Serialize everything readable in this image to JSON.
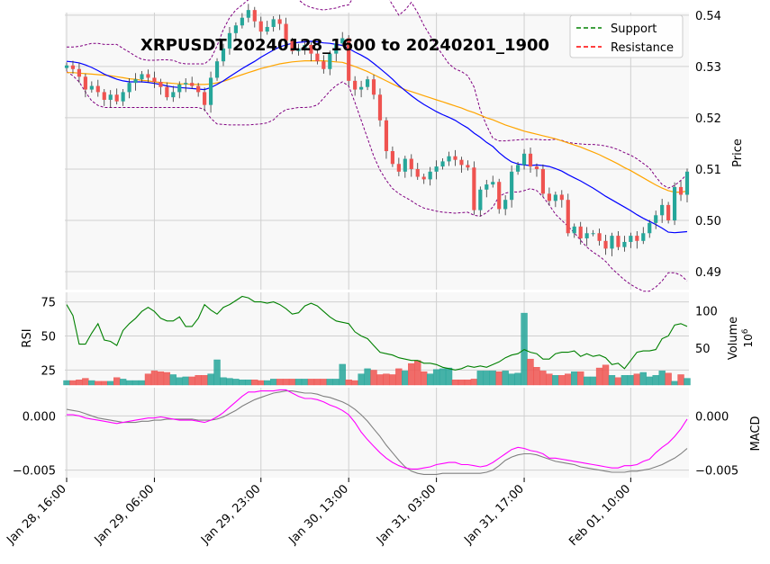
{
  "chart_data": {
    "type": "candlestick",
    "title": "XRPUSDT 20240128_1600 to 20240201_1900",
    "x_tick_labels": [
      "Jan 28, 16:00",
      "Jan 29, 06:00",
      "Jan 29, 23:00",
      "Jan 30, 13:00",
      "Jan 31, 03:00",
      "Jan 31, 17:00",
      "Feb 01, 10:00"
    ],
    "x_tick_index": [
      0,
      14,
      31,
      45,
      59,
      73,
      90
    ],
    "legend": [
      {
        "label": "Support",
        "color": "#008000",
        "style": "dashed"
      },
      {
        "label": "Resistance",
        "color": "#ff0000",
        "style": "dashed"
      }
    ],
    "legend_position": "top-right",
    "colors": {
      "up": "#26a69a",
      "down": "#ef5350",
      "sma_fast": "#0000ff",
      "sma_slow": "#ffa500",
      "bollinger": "#800080",
      "rsi": "#008000",
      "macd": "#ff00ff",
      "signal": "#808080",
      "panel_bg": "#f8f8f8",
      "grid": "#d0d0d0"
    },
    "price_panel": {
      "ylabel": "Price",
      "ylim": [
        0.4865,
        0.5405
      ],
      "yticks": [
        0.49,
        0.5,
        0.51,
        0.52,
        0.53,
        0.54
      ],
      "ytick_labels": [
        "0.49",
        "0.50",
        "0.51",
        "0.52",
        "0.53",
        "0.54"
      ],
      "close": [
        0.5302,
        0.5295,
        0.528,
        0.5255,
        0.5262,
        0.525,
        0.5235,
        0.5245,
        0.5232,
        0.525,
        0.5268,
        0.5275,
        0.5285,
        0.5278,
        0.527,
        0.526,
        0.524,
        0.525,
        0.5265,
        0.5268,
        0.5262,
        0.525,
        0.5225,
        0.5278,
        0.531,
        0.5335,
        0.5365,
        0.538,
        0.5395,
        0.541,
        0.5388,
        0.5368,
        0.5377,
        0.5392,
        0.5383,
        0.535,
        0.533,
        0.5335,
        0.5342,
        0.5325,
        0.531,
        0.5295,
        0.5325,
        0.5345,
        0.5355,
        0.5272,
        0.5255,
        0.526,
        0.5275,
        0.5245,
        0.5195,
        0.5135,
        0.511,
        0.5095,
        0.512,
        0.51,
        0.5085,
        0.508,
        0.5095,
        0.5105,
        0.5115,
        0.5125,
        0.5118,
        0.5108,
        0.5103,
        0.502,
        0.506,
        0.507,
        0.5075,
        0.5022,
        0.504,
        0.5095,
        0.5108,
        0.513,
        0.5105,
        0.51,
        0.5052,
        0.5038,
        0.505,
        0.504,
        0.4975,
        0.4988,
        0.4965,
        0.4975,
        0.4975,
        0.496,
        0.4945,
        0.497,
        0.4948,
        0.4958,
        0.497,
        0.496,
        0.4975,
        0.4995,
        0.501,
        0.503,
        0.5,
        0.5065,
        0.505,
        0.5095
      ],
      "sma_fast": [
        0.531,
        0.5309,
        0.5307,
        0.5303,
        0.5298,
        0.5292,
        0.5285,
        0.528,
        0.5275,
        0.5272,
        0.527,
        0.527,
        0.527,
        0.5269,
        0.5267,
        0.5265,
        0.5262,
        0.526,
        0.5259,
        0.5258,
        0.5257,
        0.5256,
        0.5255,
        0.5259,
        0.5265,
        0.5272,
        0.528,
        0.5288,
        0.5296,
        0.5303,
        0.531,
        0.5318,
        0.5325,
        0.5332,
        0.5338,
        0.5342,
        0.5345,
        0.5347,
        0.5348,
        0.5349,
        0.5348,
        0.5346,
        0.5345,
        0.5343,
        0.5341,
        0.5335,
        0.5328,
        0.5322,
        0.5315,
        0.5306,
        0.5296,
        0.5286,
        0.5275,
        0.5263,
        0.5253,
        0.5243,
        0.5234,
        0.5226,
        0.5219,
        0.5212,
        0.5206,
        0.5201,
        0.5195,
        0.5187,
        0.518,
        0.517,
        0.5162,
        0.5152,
        0.5144,
        0.5132,
        0.5122,
        0.5114,
        0.511,
        0.5108,
        0.5107,
        0.5108,
        0.5107,
        0.5105,
        0.5101,
        0.5096,
        0.5089,
        0.5083,
        0.5077,
        0.507,
        0.5063,
        0.5055,
        0.5047,
        0.504,
        0.5033,
        0.5026,
        0.5019,
        0.5011,
        0.5004,
        0.4998,
        0.4992,
        0.4985,
        0.4977,
        0.4976,
        0.4977,
        0.4978
      ],
      "sma_slow": [
        0.5288,
        0.5288,
        0.5287,
        0.5286,
        0.5285,
        0.5284,
        0.5283,
        0.5282,
        0.528,
        0.5278,
        0.5276,
        0.5275,
        0.5273,
        0.5272,
        0.527,
        0.5269,
        0.5268,
        0.5267,
        0.5266,
        0.5266,
        0.5265,
        0.5265,
        0.5265,
        0.5266,
        0.5268,
        0.5271,
        0.5275,
        0.528,
        0.5284,
        0.5288,
        0.5292,
        0.5296,
        0.5299,
        0.5302,
        0.5305,
        0.5307,
        0.5309,
        0.531,
        0.5311,
        0.5311,
        0.5311,
        0.5311,
        0.531,
        0.5309,
        0.5308,
        0.5304,
        0.53,
        0.5295,
        0.529,
        0.5284,
        0.5278,
        0.5272,
        0.5266,
        0.526,
        0.5255,
        0.5251,
        0.5247,
        0.5243,
        0.5239,
        0.5235,
        0.5231,
        0.5227,
        0.5223,
        0.5219,
        0.5214,
        0.521,
        0.5205,
        0.52,
        0.5196,
        0.5191,
        0.5186,
        0.5182,
        0.5178,
        0.5174,
        0.5171,
        0.5168,
        0.5165,
        0.5162,
        0.5159,
        0.5155,
        0.5151,
        0.5147,
        0.5143,
        0.5138,
        0.5133,
        0.5128,
        0.5122,
        0.5116,
        0.511,
        0.5103,
        0.5097,
        0.509,
        0.5083,
        0.5076,
        0.5069,
        0.5063,
        0.5058,
        0.5055,
        0.5055,
        0.5057
      ],
      "bb_upper": [
        0.5338,
        0.5338,
        0.5339,
        0.5342,
        0.5345,
        0.5345,
        0.5343,
        0.5343,
        0.5343,
        0.5335,
        0.5328,
        0.532,
        0.5314,
        0.5312,
        0.5312,
        0.5313,
        0.5313,
        0.5312,
        0.5307,
        0.5305,
        0.5305,
        0.5305,
        0.5305,
        0.5315,
        0.534,
        0.5372,
        0.5395,
        0.541,
        0.542,
        0.543,
        0.5435,
        0.5442,
        0.5448,
        0.545,
        0.5448,
        0.5444,
        0.5438,
        0.543,
        0.542,
        0.5415,
        0.5412,
        0.541,
        0.5412,
        0.5414,
        0.5418,
        0.542,
        0.544,
        0.546,
        0.5468,
        0.5468,
        0.546,
        0.544,
        0.542,
        0.54,
        0.541,
        0.5425,
        0.5405,
        0.538,
        0.536,
        0.534,
        0.5322,
        0.5305,
        0.5295,
        0.529,
        0.5282,
        0.526,
        0.5215,
        0.5185,
        0.516,
        0.5155,
        0.5155,
        0.5156,
        0.5157,
        0.5158,
        0.5158,
        0.5158,
        0.5157,
        0.5157,
        0.5158,
        0.5156,
        0.5152,
        0.515,
        0.5149,
        0.5148,
        0.5148,
        0.5147,
        0.5145,
        0.5142,
        0.5138,
        0.5132,
        0.5127,
        0.512,
        0.5111,
        0.5102,
        0.5085,
        0.507,
        0.5063,
        0.5068,
        0.5078,
        0.509
      ],
      "bb_lower": [
        0.529,
        0.5282,
        0.527,
        0.525,
        0.5233,
        0.5224,
        0.522,
        0.522,
        0.522,
        0.522,
        0.522,
        0.522,
        0.522,
        0.522,
        0.522,
        0.522,
        0.522,
        0.522,
        0.522,
        0.522,
        0.522,
        0.522,
        0.5216,
        0.5199,
        0.5188,
        0.5187,
        0.5186,
        0.5186,
        0.5186,
        0.5186,
        0.5187,
        0.5188,
        0.519,
        0.5196,
        0.5208,
        0.5216,
        0.5218,
        0.522,
        0.522,
        0.5221,
        0.5225,
        0.5238,
        0.5252,
        0.5263,
        0.527,
        0.5262,
        0.523,
        0.5195,
        0.516,
        0.5125,
        0.5098,
        0.5078,
        0.5062,
        0.5052,
        0.5045,
        0.5038,
        0.503,
        0.5024,
        0.5021,
        0.5018,
        0.5016,
        0.5015,
        0.5014,
        0.5015,
        0.5016,
        0.501,
        0.5008,
        0.5015,
        0.5026,
        0.5047,
        0.5053,
        0.5056,
        0.5055,
        0.5058,
        0.5062,
        0.5058,
        0.5046,
        0.503,
        0.5012,
        0.5,
        0.4988,
        0.4976,
        0.4961,
        0.4948,
        0.4938,
        0.493,
        0.492,
        0.4906,
        0.4895,
        0.4884,
        0.4875,
        0.4868,
        0.4862,
        0.4862,
        0.487,
        0.4882,
        0.4898,
        0.4898,
        0.4893,
        0.4882
      ]
    },
    "rsi_panel": {
      "ylabel": "RSI",
      "ylim": [
        14,
        82
      ],
      "yticks": [
        25,
        50,
        75
      ],
      "ytick_labels": [
        "25",
        "50",
        "75"
      ],
      "values": [
        73,
        65,
        44,
        44,
        52,
        59,
        47,
        46,
        43,
        54,
        59,
        63,
        68,
        71,
        68,
        63,
        61,
        61,
        64,
        57,
        57,
        63,
        73,
        69,
        66,
        71,
        73,
        76,
        79,
        78,
        75,
        75,
        74,
        75,
        73,
        70,
        66,
        67,
        72,
        74,
        72,
        68,
        64,
        61,
        60,
        59,
        53,
        50,
        48,
        43,
        38,
        37,
        36,
        34,
        33,
        32,
        32,
        30,
        30,
        29,
        27,
        26,
        25,
        26,
        28,
        27,
        28,
        27,
        29,
        31,
        34,
        36,
        37,
        40,
        38,
        37,
        33,
        33,
        37,
        38,
        38,
        39,
        35,
        37,
        35,
        36,
        34,
        29,
        30,
        26,
        32,
        38,
        39,
        39,
        40,
        48,
        50,
        58,
        59,
        57
      ]
    },
    "volume_panel": {
      "ylabel": "Volume",
      "unit_label": "10^6",
      "yticks": [
        50,
        100
      ],
      "ytick_labels": [
        "50",
        "100"
      ],
      "ylim": [
        0,
        125
      ],
      "values": [
        6,
        6,
        7,
        9,
        6,
        5,
        5,
        5,
        10,
        8,
        6,
        6,
        6,
        15,
        19,
        18,
        17,
        14,
        10,
        11,
        11,
        13,
        13,
        15,
        34,
        10,
        9,
        8,
        7,
        7,
        7,
        6,
        6,
        8,
        8,
        8,
        8,
        8,
        8,
        8,
        8,
        8,
        8,
        8,
        28,
        7,
        6,
        15,
        22,
        20,
        14,
        15,
        14,
        22,
        19,
        29,
        33,
        18,
        15,
        21,
        22,
        23,
        7,
        7,
        7,
        8,
        19,
        19,
        19,
        18,
        19,
        15,
        16,
        97,
        35,
        24,
        19,
        15,
        13,
        13,
        15,
        18,
        18,
        11,
        11,
        23,
        27,
        13,
        10,
        13,
        13,
        15,
        17,
        11,
        13,
        19,
        16,
        5,
        14,
        9
      ]
    },
    "macd_panel": {
      "ylabel": "MACD",
      "ylim": [
        -0.0057,
        0.0026
      ],
      "yticks": [
        -0.005,
        0.0
      ],
      "ytick_labels": [
        "−0.005",
        "0.000"
      ],
      "right_tick_labels": [
        "−0.005",
        "0.000"
      ],
      "macd": [
        0.0001,
        0.0001,
        0.0,
        -0.0002,
        -0.0003,
        -0.0004,
        -0.0005,
        -0.0006,
        -0.0007,
        -0.0006,
        -0.0005,
        -0.0004,
        -0.0003,
        -0.0002,
        -0.0002,
        -0.0001,
        -0.0002,
        -0.0003,
        -0.0004,
        -0.0004,
        -0.0004,
        -0.0005,
        -0.0006,
        -0.0004,
        -0.0001,
        0.0003,
        0.0008,
        0.0013,
        0.0018,
        0.0022,
        0.0022,
        0.0023,
        0.0023,
        0.0023,
        0.0024,
        0.0024,
        0.0021,
        0.0018,
        0.0016,
        0.0016,
        0.0015,
        0.0013,
        0.001,
        0.0008,
        0.0005,
        0.0001,
        -0.0006,
        -0.0015,
        -0.0022,
        -0.0028,
        -0.0034,
        -0.0039,
        -0.0043,
        -0.0046,
        -0.0048,
        -0.0049,
        -0.0049,
        -0.0048,
        -0.0047,
        -0.0045,
        -0.0044,
        -0.0043,
        -0.0043,
        -0.0045,
        -0.0045,
        -0.0046,
        -0.0047,
        -0.0046,
        -0.0043,
        -0.0039,
        -0.0035,
        -0.0031,
        -0.0029,
        -0.003,
        -0.0032,
        -0.0033,
        -0.0035,
        -0.0039,
        -0.0039,
        -0.004,
        -0.0041,
        -0.0042,
        -0.0043,
        -0.0044,
        -0.0045,
        -0.0046,
        -0.0047,
        -0.0048,
        -0.0048,
        -0.0046,
        -0.0046,
        -0.0045,
        -0.0042,
        -0.004,
        -0.0034,
        -0.0029,
        -0.0025,
        -0.0019,
        -0.0012,
        -0.0003
      ],
      "signal": [
        0.0006,
        0.0005,
        0.0004,
        0.0002,
        0.0,
        -0.0002,
        -0.0003,
        -0.0004,
        -0.0005,
        -0.0006,
        -0.0006,
        -0.0006,
        -0.0005,
        -0.0005,
        -0.0004,
        -0.0004,
        -0.0003,
        -0.0003,
        -0.0003,
        -0.0003,
        -0.0003,
        -0.0004,
        -0.0004,
        -0.0004,
        -0.0003,
        -0.0001,
        0.0002,
        0.0005,
        0.0009,
        0.0012,
        0.0015,
        0.0017,
        0.0019,
        0.0021,
        0.0022,
        0.0023,
        0.0023,
        0.0022,
        0.0021,
        0.0021,
        0.002,
        0.0018,
        0.0017,
        0.0015,
        0.0013,
        0.001,
        0.0006,
        0.0001,
        -0.0005,
        -0.0012,
        -0.0019,
        -0.0027,
        -0.0034,
        -0.0041,
        -0.0047,
        -0.0051,
        -0.0053,
        -0.0054,
        -0.0054,
        -0.0054,
        -0.0053,
        -0.0053,
        -0.0053,
        -0.0053,
        -0.0053,
        -0.0053,
        -0.0053,
        -0.0052,
        -0.005,
        -0.0046,
        -0.0041,
        -0.0038,
        -0.0036,
        -0.0035,
        -0.0035,
        -0.0036,
        -0.0038,
        -0.004,
        -0.0042,
        -0.0043,
        -0.0044,
        -0.0045,
        -0.0047,
        -0.0048,
        -0.0049,
        -0.005,
        -0.0051,
        -0.0052,
        -0.0052,
        -0.0052,
        -0.0051,
        -0.0051,
        -0.005,
        -0.0049,
        -0.0047,
        -0.0045,
        -0.0042,
        -0.0039,
        -0.0035,
        -0.003
      ]
    }
  }
}
